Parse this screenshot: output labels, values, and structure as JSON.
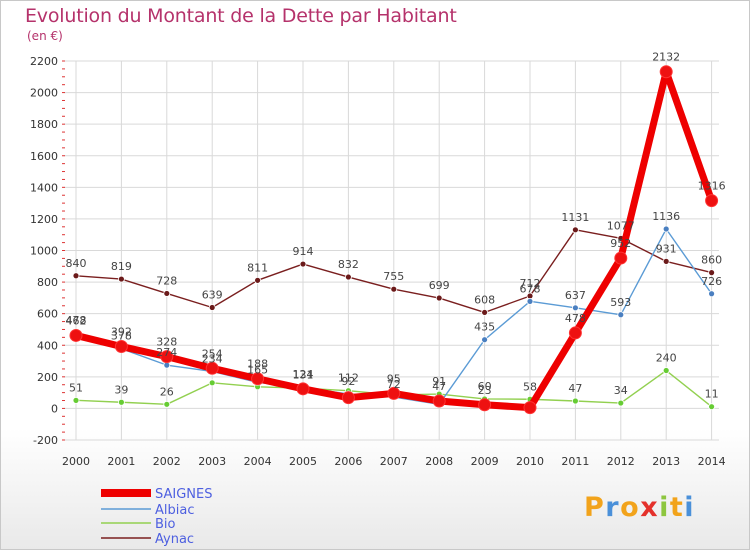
{
  "header": {
    "title": "Evolution du Montant de la Dette par Habitant",
    "unit": "(en €)"
  },
  "logo_text": "Proxiti",
  "colors": {
    "title": "#b5326b",
    "saignes": "#ee0000",
    "saignes_marker": "#ee1111",
    "albiac": "#5b9bd5",
    "albiac_marker": "#4a7fc0",
    "bio": "#92d050",
    "bio_marker": "#66cc33",
    "aynac": "#7a1f1f",
    "aynac_marker": "#6b1a1a",
    "legend_text": "#4d5fe0"
  },
  "chart_data": {
    "type": "line",
    "title": "Evolution du Montant de la Dette par Habitant",
    "subtitle": "(en €)",
    "xlabel": "",
    "ylabel": "",
    "x": [
      "2000",
      "2001",
      "2002",
      "2003",
      "2004",
      "2005",
      "2006",
      "2007",
      "2008",
      "2009",
      "2010",
      "2011",
      "2012",
      "2013",
      "2014"
    ],
    "ylim": [
      -200,
      2200
    ],
    "yticks": [
      -200,
      0,
      200,
      400,
      600,
      800,
      1000,
      1200,
      1400,
      1600,
      1800,
      2000,
      2200
    ],
    "grid": true,
    "legend_position": "bottom-left",
    "series": [
      {
        "name": "SAIGNES",
        "values": [
          462,
          392,
          328,
          254,
          188,
          124,
          68,
          95,
          47,
          23,
          5,
          478,
          952,
          2132,
          1316
        ],
        "labels": [
          "462",
          "392",
          "328",
          "254",
          "188",
          "124",
          "",
          "95",
          "47",
          "23",
          "",
          "478",
          "952",
          "2132",
          "1316"
        ]
      },
      {
        "name": "Albiac",
        "values": [
          478,
          378,
          274,
          234,
          165,
          131,
          92,
          72,
          26,
          435,
          678,
          637,
          593,
          1136,
          726
        ],
        "labels": [
          "478",
          "378",
          "274",
          "234",
          "165",
          "131",
          "92",
          "72",
          "",
          "435",
          "678",
          "637",
          "593",
          "1136",
          "726"
        ]
      },
      {
        "name": "Bio",
        "values": [
          51,
          39,
          26,
          162,
          137,
          128,
          112,
          85,
          91,
          60,
          58,
          47,
          34,
          240,
          11
        ],
        "labels": [
          "51",
          "39",
          "26",
          "",
          "",
          "",
          "112",
          "",
          "91",
          "60",
          "58",
          "47",
          "34",
          "240",
          "11"
        ]
      },
      {
        "name": "Aynac",
        "values": [
          840,
          819,
          728,
          639,
          811,
          914,
          832,
          755,
          699,
          608,
          712,
          1131,
          1077,
          931,
          860
        ],
        "labels": [
          "840",
          "819",
          "728",
          "639",
          "811",
          "914",
          "832",
          "755",
          "699",
          "608",
          "712",
          "1131",
          "1077",
          "931",
          "860"
        ]
      }
    ]
  }
}
